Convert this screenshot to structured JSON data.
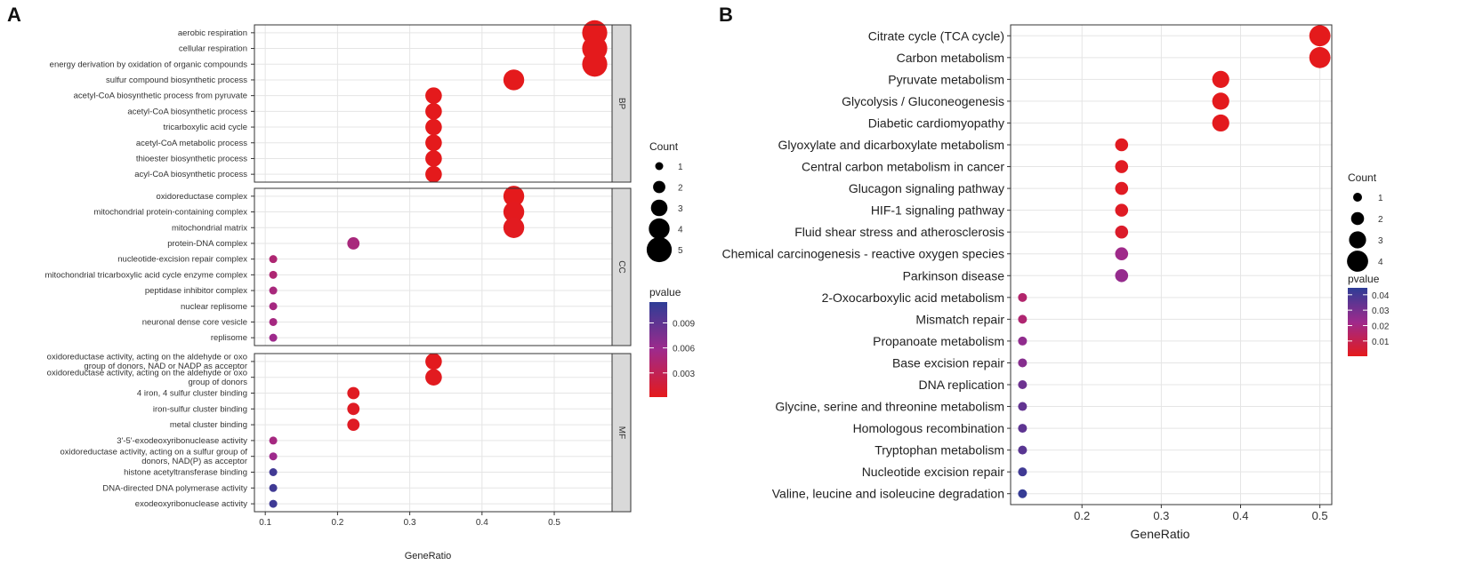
{
  "panel_a": {
    "label": "A",
    "chart_data": {
      "type": "scatter",
      "xlabel": "GeneRatio",
      "xlim": [
        0.085,
        0.58
      ],
      "xticks": [
        0.1,
        0.2,
        0.3,
        0.4,
        0.5
      ],
      "facets": [
        {
          "name": "BP",
          "terms": [
            {
              "label": [
                "aerobic respiration"
              ],
              "x": 0.556,
              "count": 5,
              "pvalue": 0.0001
            },
            {
              "label": [
                "cellular respiration"
              ],
              "x": 0.556,
              "count": 5,
              "pvalue": 0.0001
            },
            {
              "label": [
                "energy derivation by oxidation of organic compounds"
              ],
              "x": 0.556,
              "count": 5,
              "pvalue": 0.0001
            },
            {
              "label": [
                "sulfur compound biosynthetic process"
              ],
              "x": 0.444,
              "count": 4,
              "pvalue": 0.0001
            },
            {
              "label": [
                "acetyl-CoA biosynthetic process from pyruvate"
              ],
              "x": 0.333,
              "count": 3,
              "pvalue": 0.0001
            },
            {
              "label": [
                "acetyl-CoA biosynthetic process"
              ],
              "x": 0.333,
              "count": 3,
              "pvalue": 0.0001
            },
            {
              "label": [
                "tricarboxylic acid cycle"
              ],
              "x": 0.333,
              "count": 3,
              "pvalue": 0.0001
            },
            {
              "label": [
                "acetyl-CoA metabolic process"
              ],
              "x": 0.333,
              "count": 3,
              "pvalue": 0.0001
            },
            {
              "label": [
                "thioester biosynthetic process"
              ],
              "x": 0.333,
              "count": 3,
              "pvalue": 0.0001
            },
            {
              "label": [
                "acyl-CoA biosynthetic process"
              ],
              "x": 0.333,
              "count": 3,
              "pvalue": 0.0001
            }
          ]
        },
        {
          "name": "CC",
          "terms": [
            {
              "label": [
                "oxidoreductase complex"
              ],
              "x": 0.444,
              "count": 4,
              "pvalue": 0.0001
            },
            {
              "label": [
                "mitochondrial protein-containing complex"
              ],
              "x": 0.444,
              "count": 4,
              "pvalue": 0.0002
            },
            {
              "label": [
                "mitochondrial matrix"
              ],
              "x": 0.444,
              "count": 4,
              "pvalue": 0.0003
            },
            {
              "label": [
                "protein-DNA complex"
              ],
              "x": 0.222,
              "count": 2,
              "pvalue": 0.005
            },
            {
              "label": [
                "nucleotide-excision repair complex"
              ],
              "x": 0.111,
              "count": 1,
              "pvalue": 0.0045
            },
            {
              "label": [
                "mitochondrial tricarboxylic acid cycle enzyme complex"
              ],
              "x": 0.111,
              "count": 1,
              "pvalue": 0.0045
            },
            {
              "label": [
                "peptidase inhibitor complex"
              ],
              "x": 0.111,
              "count": 1,
              "pvalue": 0.005
            },
            {
              "label": [
                "nuclear replisome"
              ],
              "x": 0.111,
              "count": 1,
              "pvalue": 0.0052
            },
            {
              "label": [
                "neuronal dense core vesicle"
              ],
              "x": 0.111,
              "count": 1,
              "pvalue": 0.0052
            },
            {
              "label": [
                "replisome"
              ],
              "x": 0.111,
              "count": 1,
              "pvalue": 0.0058
            }
          ]
        },
        {
          "name": "MF",
          "terms": [
            {
              "label": [
                "oxidoreductase activity, acting on the aldehyde or oxo",
                "group of donors, NAD or NADP as acceptor"
              ],
              "x": 0.333,
              "count": 3,
              "pvalue": 0.0002
            },
            {
              "label": [
                "oxidoreductase activity, acting on the aldehyde or oxo",
                "group of donors"
              ],
              "x": 0.333,
              "count": 3,
              "pvalue": 0.0003
            },
            {
              "label": [
                "4 iron, 4 sulfur cluster binding"
              ],
              "x": 0.222,
              "count": 2,
              "pvalue": 0.0004
            },
            {
              "label": [
                "iron-sulfur cluster binding"
              ],
              "x": 0.222,
              "count": 2,
              "pvalue": 0.0005
            },
            {
              "label": [
                "metal cluster binding"
              ],
              "x": 0.222,
              "count": 2,
              "pvalue": 0.0005
            },
            {
              "label": [
                "3'-5'-exodeoxyribonuclease activity"
              ],
              "x": 0.111,
              "count": 1,
              "pvalue": 0.0052
            },
            {
              "label": [
                "oxidoreductase activity, acting on a sulfur group of",
                "donors, NAD(P) as acceptor"
              ],
              "x": 0.111,
              "count": 1,
              "pvalue": 0.0058
            },
            {
              "label": [
                "histone acetyltransferase binding"
              ],
              "x": 0.111,
              "count": 1,
              "pvalue": 0.0105
            },
            {
              "label": [
                "DNA-directed DNA polymerase activity"
              ],
              "x": 0.111,
              "count": 1,
              "pvalue": 0.0106
            },
            {
              "label": [
                "exodeoxyribonuclease activity"
              ],
              "x": 0.111,
              "count": 1,
              "pvalue": 0.0107
            }
          ]
        }
      ],
      "legend_count": {
        "title": "Count",
        "values": [
          1,
          2,
          3,
          4,
          5
        ]
      },
      "legend_pvalue": {
        "title": "pvalue",
        "ticks": [
          0.003,
          0.006,
          0.009
        ],
        "tick_labels": [
          "0.003",
          "0.006",
          "0.009"
        ],
        "range": [
          0.0001,
          0.0115
        ]
      }
    }
  },
  "panel_b": {
    "label": "B",
    "chart_data": {
      "type": "scatter",
      "xlabel": "GeneRatio",
      "xlim": [
        0.11,
        0.515
      ],
      "xticks": [
        0.2,
        0.3,
        0.4,
        0.5
      ],
      "terms": [
        {
          "label": "Citrate cycle (TCA cycle)",
          "x": 0.5,
          "count": 4,
          "pvalue": 0.0001
        },
        {
          "label": "Carbon metabolism",
          "x": 0.5,
          "count": 4,
          "pvalue": 0.0001
        },
        {
          "label": "Pyruvate metabolism",
          "x": 0.375,
          "count": 3,
          "pvalue": 0.0002
        },
        {
          "label": "Glycolysis / Gluconeogenesis",
          "x": 0.375,
          "count": 3,
          "pvalue": 0.0003
        },
        {
          "label": "Diabetic cardiomyopathy",
          "x": 0.375,
          "count": 3,
          "pvalue": 0.0004
        },
        {
          "label": "Glyoxylate and dicarboxylate metabolism",
          "x": 0.25,
          "count": 2,
          "pvalue": 0.001
        },
        {
          "label": "Central carbon metabolism in cancer",
          "x": 0.25,
          "count": 2,
          "pvalue": 0.0012
        },
        {
          "label": "Glucagon signaling pathway",
          "x": 0.25,
          "count": 2,
          "pvalue": 0.0015
        },
        {
          "label": "HIF-1 signaling pathway",
          "x": 0.25,
          "count": 2,
          "pvalue": 0.0016
        },
        {
          "label": "Fluid shear stress and atherosclerosis",
          "x": 0.25,
          "count": 2,
          "pvalue": 0.003
        },
        {
          "label": "Chemical carcinogenesis - reactive oxygen species",
          "x": 0.25,
          "count": 2,
          "pvalue": 0.022
        },
        {
          "label": "Parkinson disease",
          "x": 0.25,
          "count": 2,
          "pvalue": 0.024
        },
        {
          "label": "2-Oxocarboxylic acid metabolism",
          "x": 0.125,
          "count": 1,
          "pvalue": 0.016
        },
        {
          "label": "Mismatch repair",
          "x": 0.125,
          "count": 1,
          "pvalue": 0.017
        },
        {
          "label": "Propanoate metabolism",
          "x": 0.125,
          "count": 1,
          "pvalue": 0.025
        },
        {
          "label": "Base excision repair",
          "x": 0.125,
          "count": 1,
          "pvalue": 0.027
        },
        {
          "label": "DNA replication",
          "x": 0.125,
          "count": 1,
          "pvalue": 0.032
        },
        {
          "label": "Glycine, serine and threonine metabolism",
          "x": 0.125,
          "count": 1,
          "pvalue": 0.034
        },
        {
          "label": "Homologous recombination",
          "x": 0.125,
          "count": 1,
          "pvalue": 0.035
        },
        {
          "label": "Tryptophan metabolism",
          "x": 0.125,
          "count": 1,
          "pvalue": 0.036
        },
        {
          "label": "Nucleotide excision repair",
          "x": 0.125,
          "count": 1,
          "pvalue": 0.041
        },
        {
          "label": "Valine, leucine and isoleucine degradation",
          "x": 0.125,
          "count": 1,
          "pvalue": 0.043
        }
      ],
      "legend_count": {
        "title": "Count",
        "values": [
          1,
          2,
          3,
          4
        ]
      },
      "legend_pvalue": {
        "title": "pvalue",
        "ticks": [
          0.01,
          0.02,
          0.03,
          0.04
        ],
        "tick_labels": [
          "0.01",
          "0.02",
          "0.03",
          "0.04"
        ],
        "range": [
          0.0001,
          0.0445
        ]
      }
    }
  },
  "colors": {
    "low": "#E41A1C",
    "mid": "#9E2A8C",
    "high": "#2E3D96",
    "grid": "#E5E5E5",
    "strip": "#D9D9D9",
    "text": "#222222"
  }
}
